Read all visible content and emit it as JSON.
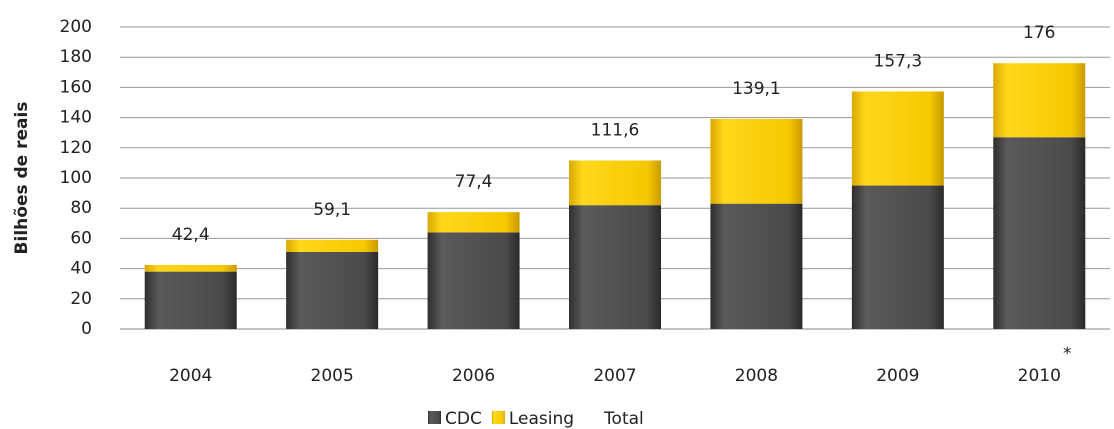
{
  "chart_data": {
    "type": "stacked_bar",
    "y_label": "Bilhões de reais",
    "categories": [
      "2004",
      "2005",
      "2006",
      "2007",
      "2008",
      "2009",
      "2010"
    ],
    "series": [
      {
        "name": "CDC",
        "color": "#4a4a4a",
        "values": [
          38,
          51,
          64,
          82,
          83,
          95,
          127
        ]
      },
      {
        "name": "Leasing",
        "color": "#f5c800",
        "values": [
          4.4,
          8.1,
          13.4,
          29.6,
          56.1,
          62.3,
          49
        ]
      },
      {
        "name": "Total",
        "values": [
          42.4,
          59.1,
          77.4,
          111.6,
          139.1,
          157.3,
          176
        ],
        "value_labels": [
          "42,4",
          "59,1",
          "77,4",
          "111,6",
          "139,1",
          "157,3",
          "176"
        ]
      }
    ],
    "annotation": "*",
    "ylim": [
      0,
      200
    ],
    "yticks": [
      0,
      20,
      40,
      60,
      80,
      100,
      120,
      140,
      160,
      180,
      200
    ],
    "grid": true
  }
}
